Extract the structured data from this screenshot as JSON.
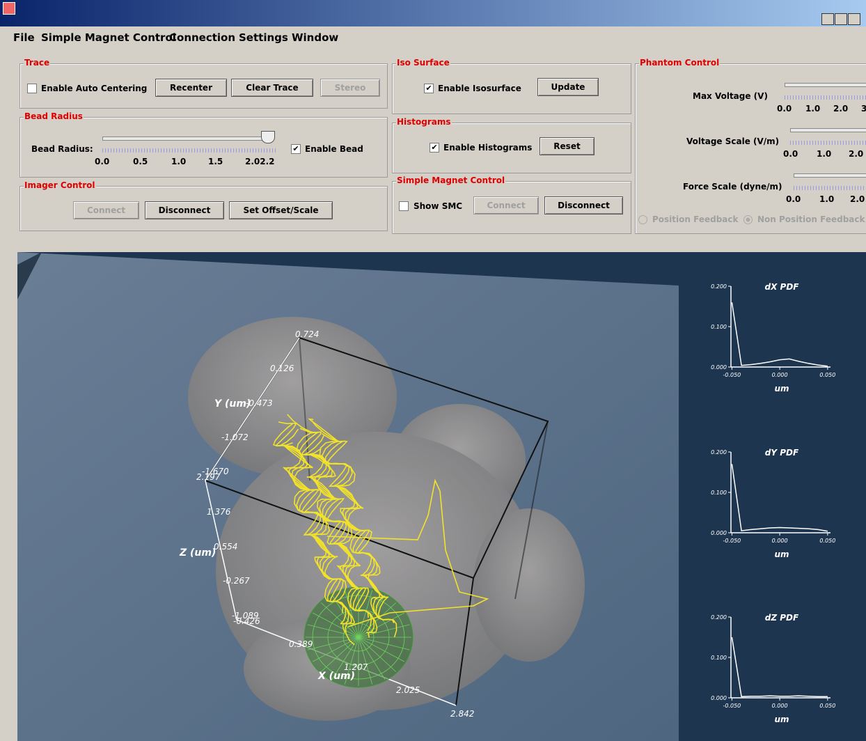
{
  "menu": [
    "File",
    "Simple Magnet Control",
    "Connection",
    "Settings",
    "Window"
  ],
  "trace": {
    "title": "Trace",
    "checkbox": "Enable Auto Centering",
    "buttons": [
      "Recenter",
      "Clear Trace",
      "Stereo"
    ]
  },
  "bead_radius": {
    "title": "Bead Radius",
    "label": "Bead Radius:",
    "ticks": [
      "0.0",
      "0.5",
      "1.0",
      "1.5",
      "2.02.2"
    ],
    "checkbox": "Enable Bead"
  },
  "imager_control": {
    "title": "Imager Control",
    "buttons": [
      "Connect",
      "Disconnect",
      "Set Offset/Scale"
    ]
  },
  "iso_surface": {
    "title": "Iso Surface",
    "checkbox": "Enable Isosurface",
    "button": "Update"
  },
  "histograms": {
    "title": "Histograms",
    "checkbox": "Enable Histograms",
    "button": "Reset"
  },
  "simple_magnet_control": {
    "title": "Simple Magnet Control",
    "checkbox": "Show SMC",
    "buttons": [
      "Connect",
      "Disconnect"
    ]
  },
  "phantom_control": {
    "title": "Phantom Control",
    "sliders": [
      {
        "label": "Max Voltage (V)",
        "ticks": [
          "0.0",
          "1.0",
          "2.0",
          "3"
        ]
      },
      {
        "label": "Voltage Scale (V/m)",
        "ticks": [
          "0.0",
          "1.0",
          "2.0"
        ]
      },
      {
        "label": "Force Scale (dyne/m)",
        "ticks": [
          "0.0",
          "1.0",
          "2.0"
        ]
      }
    ],
    "radios": [
      "Position Feedback",
      "Non Position Feedback"
    ]
  },
  "view": {
    "y_axis": {
      "label": "Y (um)",
      "ticks": [
        "0.724",
        "0.126",
        "-0.473",
        "-1.072",
        "-1.670"
      ]
    },
    "z_axis": {
      "label": "Z (um)",
      "ticks": [
        "2.197",
        "1.376",
        "0.554",
        "-0.267",
        "-1.089"
      ]
    },
    "x_axis": {
      "label": "X (um)",
      "ticks": [
        "-0.426",
        "0.389",
        "1.207",
        "2.025",
        "2.842"
      ]
    }
  },
  "pdf_charts": [
    {
      "title": "dX PDF",
      "xlabel": "um",
      "xlim": [
        -0.051,
        0.053
      ],
      "ylim": [
        0,
        0.2
      ],
      "xticks": [
        {
          "value": -0.05,
          "label": "-0.050"
        },
        {
          "value": 0,
          "label": "0.000"
        },
        {
          "value": 0.05,
          "label": "0.050"
        }
      ],
      "yticks": [
        {
          "value": 0,
          "label": "0.000"
        },
        {
          "value": 0.1,
          "label": "0.100"
        },
        {
          "value": 0.2,
          "label": "0.200"
        }
      ],
      "x": [
        -0.05,
        -0.04,
        -0.03,
        -0.02,
        -0.01,
        0,
        0.01,
        0.02,
        0.03,
        0.04,
        0.05
      ],
      "values": [
        0.16,
        0.004,
        0.006,
        0.009,
        0.013,
        0.018,
        0.02,
        0.014,
        0.009,
        0.005,
        0.002
      ]
    },
    {
      "title": "dY PDF",
      "xlabel": "um",
      "xlim": [
        -0.051,
        0.053
      ],
      "ylim": [
        0,
        0.2
      ],
      "xticks": [
        {
          "value": -0.05,
          "label": "-0.050"
        },
        {
          "value": 0,
          "label": "0.000"
        },
        {
          "value": 0.05,
          "label": "0.050"
        }
      ],
      "yticks": [
        {
          "value": 0,
          "label": "0.000"
        },
        {
          "value": 0.1,
          "label": "0.100"
        },
        {
          "value": 0.2,
          "label": "0.200"
        }
      ],
      "x": [
        -0.05,
        -0.04,
        -0.03,
        -0.02,
        -0.01,
        0,
        0.01,
        0.02,
        0.03,
        0.04,
        0.05
      ],
      "values": [
        0.17,
        0.005,
        0.008,
        0.01,
        0.012,
        0.013,
        0.012,
        0.011,
        0.01,
        0.008,
        0.004
      ]
    },
    {
      "title": "dZ PDF",
      "xlabel": "um",
      "xlim": [
        -0.051,
        0.053
      ],
      "ylim": [
        0,
        0.2
      ],
      "xticks": [
        {
          "value": -0.05,
          "label": "-0.050"
        },
        {
          "value": 0,
          "label": "0.000"
        },
        {
          "value": 0.05,
          "label": "0.050"
        }
      ],
      "yticks": [
        {
          "value": 0,
          "label": "0.000"
        },
        {
          "value": 0.1,
          "label": "0.100"
        },
        {
          "value": 0.2,
          "label": "0.200"
        }
      ],
      "x": [
        -0.05,
        -0.04,
        -0.03,
        -0.02,
        -0.01,
        0,
        0.01,
        0.02,
        0.03,
        0.04,
        0.05
      ],
      "values": [
        0.15,
        0.003,
        0.004,
        0.004,
        0.005,
        0.004,
        0.004,
        0.005,
        0.004,
        0.003,
        0.003
      ]
    }
  ]
}
